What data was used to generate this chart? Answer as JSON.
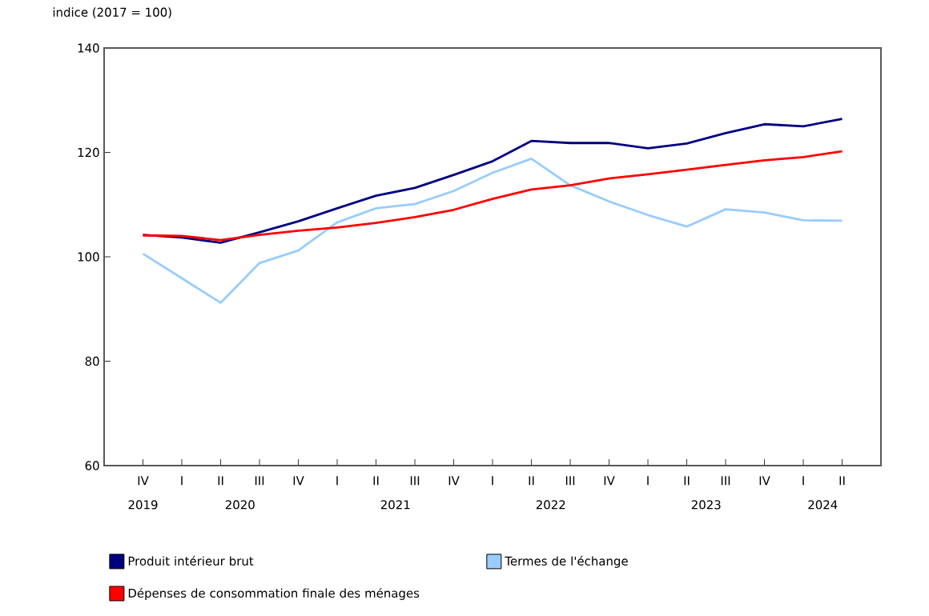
{
  "chart_data": {
    "type": "line",
    "ylabel": "indice (2017 = 100)",
    "categories": [
      "IV",
      "I",
      "II",
      "III",
      "IV",
      "I",
      "II",
      "III",
      "IV",
      "I",
      "II",
      "III",
      "IV",
      "I",
      "II",
      "III",
      "IV",
      "I",
      "II"
    ],
    "annotations": [
      "2019",
      "2020",
      "2021",
      "2022",
      "2023",
      "2024"
    ],
    "ylim": [
      60,
      140
    ],
    "yticks": [
      60,
      80,
      100,
      120,
      140
    ],
    "grid": false,
    "legend": "bottom",
    "marker": "none",
    "line_style": "solid",
    "series": [
      {
        "name": "Produit intérieur brut",
        "color": "#000080",
        "values": [
          104.2,
          103.7,
          102.7,
          104.7,
          106.8,
          109.3,
          111.7,
          113.2,
          115.7,
          118.3,
          122.2,
          121.8,
          121.8,
          120.8,
          121.7,
          123.7,
          125.4,
          125.0,
          126.4
        ]
      },
      {
        "name": "Termes de l'échange",
        "color": "#99ccff",
        "values": [
          100.6,
          95.9,
          91.2,
          98.8,
          101.2,
          106.6,
          109.3,
          110.1,
          112.6,
          116.1,
          118.8,
          113.7,
          110.6,
          108.0,
          105.8,
          109.1,
          108.5,
          107.0,
          106.9
        ]
      },
      {
        "name": "Dépenses de consommation finale des ménages",
        "color": "#ff0000",
        "values": [
          104.1,
          104.0,
          103.2,
          104.2,
          105.0,
          105.6,
          106.5,
          107.6,
          109.0,
          111.1,
          112.9,
          113.7,
          115.0,
          115.8,
          116.7,
          117.6,
          118.5,
          119.1,
          120.2
        ]
      }
    ]
  }
}
